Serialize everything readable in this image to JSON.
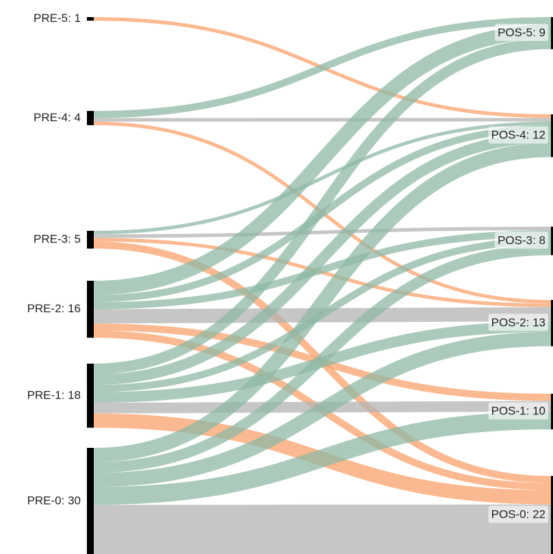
{
  "chart_data": {
    "type": "sankey",
    "sources": [
      {
        "label": "PRE-5: 1",
        "value": 1
      },
      {
        "label": "PRE-4: 4",
        "value": 4
      },
      {
        "label": "PRE-3: 5",
        "value": 5
      },
      {
        "label": "PRE-2: 16",
        "value": 16
      },
      {
        "label": "PRE-1: 18",
        "value": 18
      },
      {
        "label": "PRE-0: 30",
        "value": 30
      }
    ],
    "targets": [
      {
        "label": "POS-5: 9",
        "value": 9
      },
      {
        "label": "POS-4: 12",
        "value": 12
      },
      {
        "label": "POS-3: 8",
        "value": 8
      },
      {
        "label": "POS-2: 13",
        "value": 13
      },
      {
        "label": "POS-1: 10",
        "value": 10
      },
      {
        "label": "POS-0: 22",
        "value": 22
      }
    ],
    "links": [
      {
        "source": 0,
        "target": 1,
        "value": 1
      },
      {
        "source": 1,
        "target": 0,
        "value": 2
      },
      {
        "source": 1,
        "target": 1,
        "value": 1
      },
      {
        "source": 1,
        "target": 3,
        "value": 1
      },
      {
        "source": 2,
        "target": 1,
        "value": 1
      },
      {
        "source": 2,
        "target": 2,
        "value": 1
      },
      {
        "source": 2,
        "target": 3,
        "value": 1
      },
      {
        "source": 2,
        "target": 5,
        "value": 2
      },
      {
        "source": 3,
        "target": 0,
        "value": 4
      },
      {
        "source": 3,
        "target": 1,
        "value": 2
      },
      {
        "source": 3,
        "target": 2,
        "value": 2
      },
      {
        "source": 3,
        "target": 3,
        "value": 4
      },
      {
        "source": 3,
        "target": 4,
        "value": 2
      },
      {
        "source": 3,
        "target": 5,
        "value": 2
      },
      {
        "source": 4,
        "target": 0,
        "value": 3
      },
      {
        "source": 4,
        "target": 1,
        "value": 3
      },
      {
        "source": 4,
        "target": 2,
        "value": 2
      },
      {
        "source": 4,
        "target": 3,
        "value": 3
      },
      {
        "source": 4,
        "target": 4,
        "value": 3
      },
      {
        "source": 4,
        "target": 5,
        "value": 4
      },
      {
        "source": 5,
        "target": 1,
        "value": 4
      },
      {
        "source": 5,
        "target": 2,
        "value": 3
      },
      {
        "source": 5,
        "target": 3,
        "value": 4
      },
      {
        "source": 5,
        "target": 4,
        "value": 5
      },
      {
        "source": 5,
        "target": 5,
        "value": 14
      }
    ],
    "colors": {
      "up": "#8fb8a5",
      "same": "#b3b3b3",
      "down": "#f9a26c"
    }
  }
}
